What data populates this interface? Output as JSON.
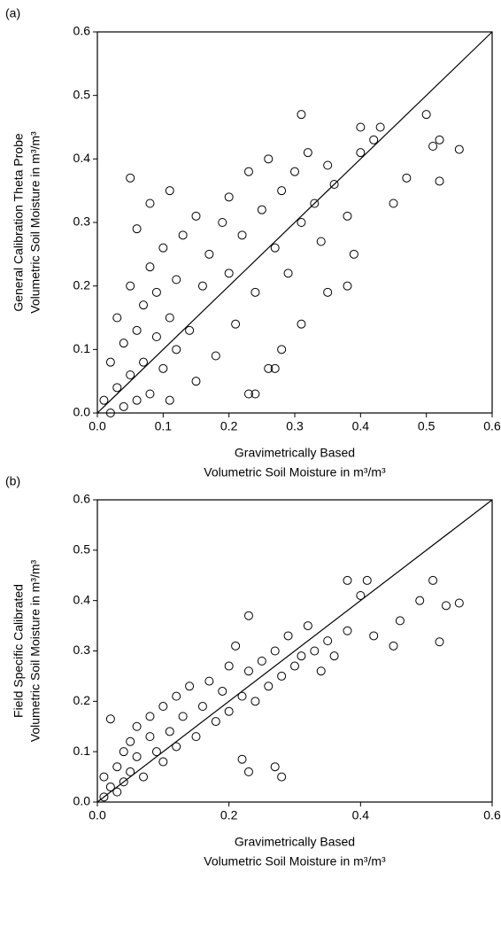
{
  "chart_data": [
    {
      "type": "scatter",
      "panel_label": "(a)",
      "xlabel": [
        "Gravimetrically Based",
        "Volumetric Soil Moisture in m³/m³"
      ],
      "ylabel": [
        "General Calibration Theta Probe",
        "Volumetric Soil Moisture in m³/m³"
      ],
      "marker": "open-circle",
      "color": "#000000",
      "identity_line": true,
      "xlim": [
        0,
        0.6
      ],
      "ylim": [
        0,
        0.6
      ],
      "xticks": [
        {
          "value": 0,
          "label": "0.0"
        },
        0.1,
        0.2,
        0.3,
        0.4,
        0.5,
        0.6
      ],
      "yticks": [
        {
          "value": 0,
          "label": "0.0"
        },
        0.1,
        0.2,
        0.3,
        0.4,
        0.5,
        0.6
      ],
      "x": [
        0.01,
        0.02,
        0.02,
        0.03,
        0.03,
        0.04,
        0.04,
        0.05,
        0.05,
        0.06,
        0.06,
        0.07,
        0.07,
        0.08,
        0.08,
        0.09,
        0.09,
        0.1,
        0.1,
        0.11,
        0.11,
        0.12,
        0.12,
        0.13,
        0.14,
        0.15,
        0.15,
        0.16,
        0.17,
        0.18,
        0.19,
        0.2,
        0.2,
        0.21,
        0.22,
        0.23,
        0.24,
        0.25,
        0.26,
        0.27,
        0.28,
        0.29,
        0.3,
        0.31,
        0.32,
        0.33,
        0.34,
        0.35,
        0.36,
        0.38,
        0.4,
        0.42,
        0.05,
        0.06,
        0.08,
        0.11,
        0.31,
        0.5,
        0.52,
        0.55,
        0.51,
        0.52,
        0.43,
        0.4,
        0.24,
        0.23,
        0.26,
        0.28,
        0.27,
        0.31,
        0.35,
        0.38,
        0.39,
        0.45,
        0.47
      ],
      "y": [
        0.02,
        0.08,
        0.0,
        0.15,
        0.04,
        0.11,
        0.01,
        0.2,
        0.06,
        0.13,
        0.02,
        0.17,
        0.08,
        0.23,
        0.03,
        0.12,
        0.19,
        0.26,
        0.07,
        0.15,
        0.02,
        0.21,
        0.1,
        0.28,
        0.13,
        0.31,
        0.05,
        0.2,
        0.25,
        0.09,
        0.3,
        0.22,
        0.34,
        0.14,
        0.28,
        0.38,
        0.19,
        0.32,
        0.4,
        0.26,
        0.35,
        0.22,
        0.38,
        0.3,
        0.41,
        0.33,
        0.27,
        0.39,
        0.36,
        0.31,
        0.41,
        0.43,
        0.37,
        0.29,
        0.33,
        0.35,
        0.47,
        0.47,
        0.43,
        0.415,
        0.42,
        0.365,
        0.45,
        0.45,
        0.03,
        0.03,
        0.07,
        0.1,
        0.07,
        0.14,
        0.19,
        0.2,
        0.25,
        0.33,
        0.37
      ]
    },
    {
      "type": "scatter",
      "panel_label": "(b)",
      "xlabel": [
        "Gravimetrically Based",
        "Volumetric Soil Moisture in m³/m³"
      ],
      "ylabel": [
        "Field Specific Calibrated",
        "Volumetric Soil Moisture in m³/m³"
      ],
      "marker": "open-circle",
      "color": "#000000",
      "identity_line": true,
      "xlim": [
        0,
        0.6
      ],
      "ylim": [
        0,
        0.6
      ],
      "xticks": [
        {
          "value": 0,
          "label": "0.0"
        },
        0.2,
        0.4,
        0.6
      ],
      "yticks": [
        {
          "value": 0,
          "label": "0.0"
        },
        0.1,
        0.2,
        0.3,
        0.4,
        0.5,
        0.6
      ],
      "x": [
        0.01,
        0.01,
        0.02,
        0.02,
        0.03,
        0.03,
        0.04,
        0.04,
        0.05,
        0.05,
        0.06,
        0.06,
        0.07,
        0.08,
        0.08,
        0.09,
        0.1,
        0.1,
        0.11,
        0.12,
        0.12,
        0.13,
        0.14,
        0.15,
        0.16,
        0.17,
        0.18,
        0.19,
        0.2,
        0.2,
        0.21,
        0.22,
        0.23,
        0.24,
        0.25,
        0.26,
        0.27,
        0.28,
        0.29,
        0.3,
        0.31,
        0.32,
        0.33,
        0.34,
        0.35,
        0.36,
        0.38,
        0.4,
        0.42,
        0.23,
        0.22,
        0.38,
        0.41,
        0.51,
        0.55,
        0.53,
        0.52,
        0.23,
        0.27,
        0.28,
        0.46,
        0.45,
        0.49
      ],
      "y": [
        0.01,
        0.05,
        0.165,
        0.03,
        0.07,
        0.02,
        0.1,
        0.04,
        0.06,
        0.12,
        0.09,
        0.15,
        0.05,
        0.13,
        0.17,
        0.1,
        0.19,
        0.08,
        0.14,
        0.21,
        0.11,
        0.17,
        0.23,
        0.13,
        0.19,
        0.24,
        0.16,
        0.22,
        0.27,
        0.18,
        0.31,
        0.21,
        0.26,
        0.2,
        0.28,
        0.23,
        0.3,
        0.25,
        0.33,
        0.27,
        0.29,
        0.35,
        0.3,
        0.26,
        0.32,
        0.29,
        0.34,
        0.41,
        0.33,
        0.37,
        0.085,
        0.44,
        0.44,
        0.44,
        0.395,
        0.39,
        0.318,
        0.06,
        0.07,
        0.05,
        0.36,
        0.31,
        0.4
      ]
    }
  ]
}
